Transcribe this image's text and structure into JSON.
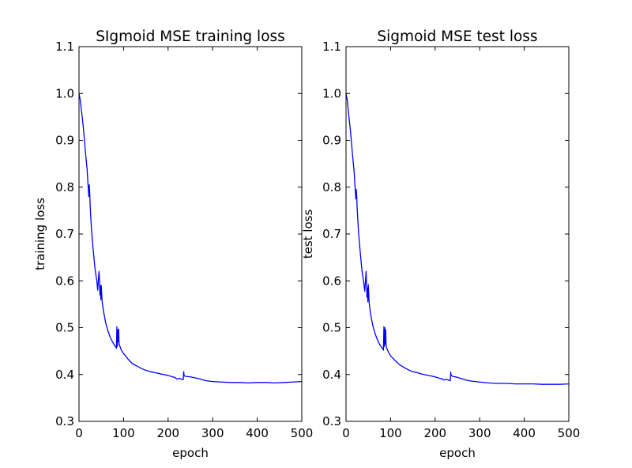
{
  "chart_data": [
    {
      "type": "line",
      "title": "SIgmoid MSE training loss",
      "xlabel": "epoch",
      "ylabel": "training loss",
      "xlim": [
        0,
        500
      ],
      "ylim": [
        0.3,
        1.1
      ],
      "xticks": [
        "0",
        "100",
        "200",
        "300",
        "400",
        "500"
      ],
      "yticks": [
        "0.3",
        "0.4",
        "0.5",
        "0.6",
        "0.7",
        "0.8",
        "0.9",
        "1.0",
        "1.1"
      ],
      "grid": false,
      "color": "#0000ff",
      "series": [
        {
          "x": [
            0,
            3,
            6,
            10,
            14,
            18,
            20,
            22,
            23,
            24,
            25,
            28,
            32,
            36,
            40,
            42,
            44,
            45,
            46,
            47,
            48,
            49,
            50,
            52,
            55,
            60,
            65,
            70,
            75,
            80,
            84,
            85,
            86,
            87,
            88,
            89,
            90,
            95,
            100,
            110,
            120,
            130,
            140,
            150,
            160,
            170,
            180,
            190,
            200,
            210,
            215,
            220,
            225,
            230,
            234,
            235,
            236,
            240,
            250,
            260,
            270,
            280,
            290,
            300,
            320,
            340,
            360,
            380,
            400,
            420,
            440,
            460,
            480,
            500
          ],
          "y": [
            1.0,
            0.985,
            0.96,
            0.925,
            0.88,
            0.84,
            0.81,
            0.78,
            0.805,
            0.79,
            0.76,
            0.71,
            0.665,
            0.625,
            0.6,
            0.58,
            0.61,
            0.62,
            0.6,
            0.57,
            0.59,
            0.56,
            0.59,
            0.555,
            0.535,
            0.51,
            0.493,
            0.48,
            0.47,
            0.462,
            0.456,
            0.502,
            0.46,
            0.495,
            0.47,
            0.497,
            0.465,
            0.452,
            0.445,
            0.433,
            0.423,
            0.418,
            0.413,
            0.409,
            0.406,
            0.404,
            0.402,
            0.4,
            0.398,
            0.395,
            0.394,
            0.39,
            0.392,
            0.39,
            0.389,
            0.406,
            0.397,
            0.396,
            0.395,
            0.393,
            0.391,
            0.388,
            0.386,
            0.385,
            0.384,
            0.383,
            0.383,
            0.382,
            0.383,
            0.383,
            0.382,
            0.383,
            0.384,
            0.385
          ]
        }
      ]
    },
    {
      "type": "line",
      "title": "Sigmoid MSE test loss",
      "xlabel": "epoch",
      "ylabel": "test loss",
      "xlim": [
        0,
        500
      ],
      "ylim": [
        0.3,
        1.1
      ],
      "xticks": [
        "0",
        "100",
        "200",
        "300",
        "400",
        "500"
      ],
      "yticks": [
        "0.3",
        "0.4",
        "0.5",
        "0.6",
        "0.7",
        "0.8",
        "0.9",
        "1.0",
        "1.1"
      ],
      "grid": false,
      "color": "#0000ff",
      "series": [
        {
          "x": [
            0,
            3,
            6,
            10,
            14,
            18,
            20,
            22,
            23,
            24,
            25,
            28,
            32,
            36,
            40,
            42,
            44,
            45,
            46,
            47,
            48,
            49,
            50,
            52,
            55,
            60,
            65,
            70,
            75,
            80,
            84,
            85,
            86,
            87,
            88,
            89,
            90,
            95,
            100,
            110,
            120,
            130,
            140,
            150,
            160,
            170,
            180,
            190,
            200,
            210,
            215,
            220,
            225,
            230,
            234,
            235,
            236,
            240,
            250,
            260,
            270,
            280,
            290,
            300,
            320,
            340,
            360,
            380,
            400,
            420,
            440,
            460,
            480,
            500
          ],
          "y": [
            1.0,
            0.985,
            0.955,
            0.92,
            0.875,
            0.835,
            0.805,
            0.775,
            0.795,
            0.78,
            0.755,
            0.705,
            0.66,
            0.62,
            0.595,
            0.578,
            0.605,
            0.62,
            0.595,
            0.565,
            0.585,
            0.555,
            0.592,
            0.552,
            0.53,
            0.505,
            0.488,
            0.475,
            0.465,
            0.458,
            0.452,
            0.502,
            0.46,
            0.5,
            0.465,
            0.495,
            0.46,
            0.448,
            0.44,
            0.43,
            0.421,
            0.415,
            0.41,
            0.406,
            0.404,
            0.401,
            0.399,
            0.397,
            0.395,
            0.392,
            0.391,
            0.388,
            0.39,
            0.388,
            0.387,
            0.405,
            0.398,
            0.396,
            0.394,
            0.391,
            0.388,
            0.386,
            0.385,
            0.384,
            0.382,
            0.381,
            0.381,
            0.38,
            0.38,
            0.38,
            0.379,
            0.379,
            0.379,
            0.38
          ]
        }
      ]
    }
  ]
}
